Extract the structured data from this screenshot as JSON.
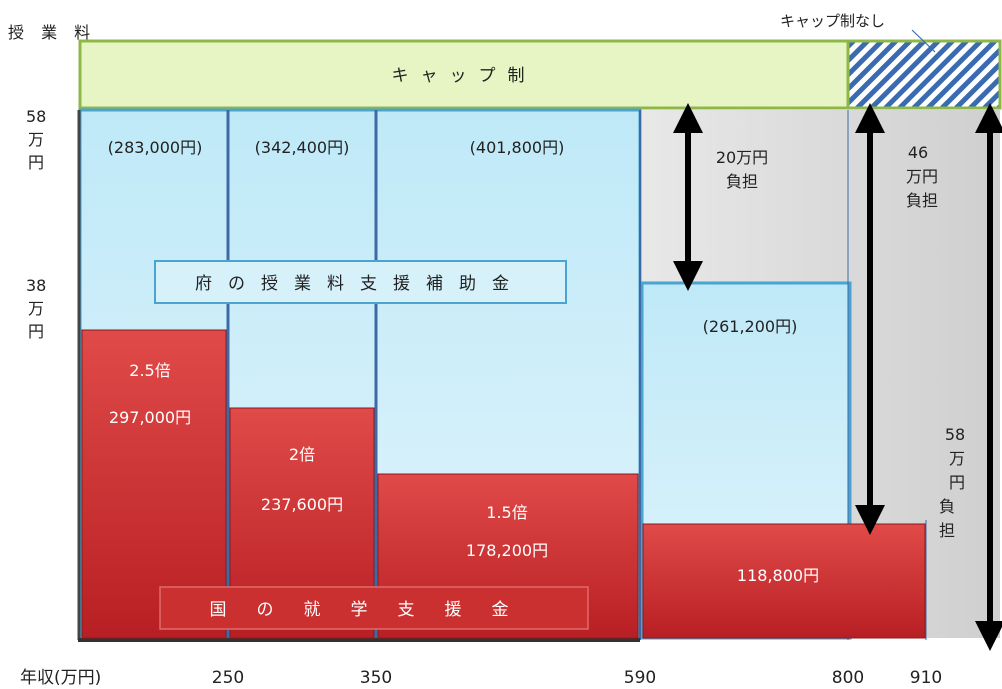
{
  "chart_data": {
    "type": "bar",
    "title": "",
    "ylabel": "授 業 料",
    "xlabel": "年収(万円)",
    "x_ticks": [
      "250",
      "350",
      "590",
      "800",
      "910"
    ],
    "y_ticks": [
      {
        "label": "58万円",
        "value": 580000
      },
      {
        "label": "38万円",
        "value": 380000
      }
    ],
    "ylim": [
      0,
      580000
    ],
    "cap_label": "キャップ制",
    "no_cap_label": "キャップ制なし",
    "segments": [
      {
        "x_from": 0,
        "x_to": 250,
        "national_label": "297,000円",
        "national_value": 297000,
        "multiplier": "2.5倍",
        "prefecture_label": "(283,000円)",
        "prefecture_value": 283000
      },
      {
        "x_from": 250,
        "x_to": 350,
        "national_label": "237,600円",
        "national_value": 237600,
        "multiplier": "2倍",
        "prefecture_label": "(342,400円)",
        "prefecture_value": 342400
      },
      {
        "x_from": 350,
        "x_to": 590,
        "national_label": "178,200円",
        "national_value": 178200,
        "multiplier": "1.5倍",
        "prefecture_label": "(401,800円)",
        "prefecture_value": 401800
      },
      {
        "x_from": 590,
        "x_to": 800,
        "national_label": "118,800円",
        "national_value": 118800,
        "multiplier": "",
        "prefecture_label": "(261,200円)",
        "prefecture_value": 261200
      },
      {
        "x_from": 800,
        "x_to": 910,
        "national_label": "",
        "national_value": 118800,
        "multiplier": "",
        "prefecture_label": "",
        "prefecture_value": 0
      }
    ],
    "burdens": [
      {
        "label": "20万円負担",
        "value": 200000
      },
      {
        "label": "46万円負担",
        "value": 461200
      },
      {
        "label": "58万円負担",
        "value": 580000
      }
    ],
    "legend": {
      "prefecture": "府の授業料支援補助金",
      "national": "国の就学支援金"
    },
    "colors": {
      "national": "#c9282d",
      "prefecture": "#bfeaf7",
      "burden": "#d9d9d9",
      "cap": "#e7f5c4",
      "cap_border": "#8db848",
      "hatch": "#3a6ab0",
      "divider": "#3d6aa6"
    }
  }
}
